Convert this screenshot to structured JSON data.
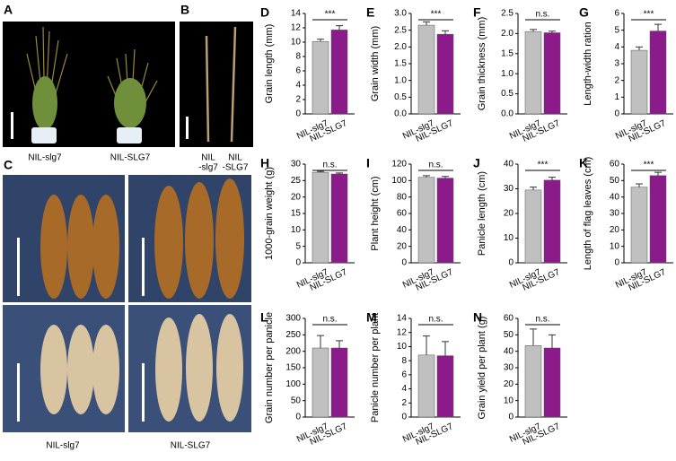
{
  "photo_panels": [
    {
      "panel": "A",
      "labels": [
        "NIL-slg7",
        "NIL-SLG7"
      ]
    },
    {
      "panel": "B",
      "labels": [
        [
          "NIL",
          "-slg7"
        ],
        [
          "NIL",
          "-SLG7"
        ]
      ]
    },
    {
      "panel": "C",
      "labels": [
        "NIL-slg7",
        "NIL-SLG7"
      ]
    }
  ],
  "chart_data": [
    {
      "type": "bar",
      "panel": "D",
      "y_label": "Grain length (mm)",
      "categories": [
        "NIL-slg7",
        "NIL-SLG7"
      ],
      "values": [
        10.1,
        11.7
      ],
      "errors": [
        0.3,
        0.6
      ],
      "colors": [
        "#c0c0c0",
        "#8b1a8b"
      ],
      "ylim": [
        0,
        14
      ],
      "yticks": [
        0,
        2,
        4,
        6,
        8,
        10,
        12,
        14
      ],
      "significance": "***"
    },
    {
      "type": "bar",
      "panel": "E",
      "y_label": "Grain width (mm)",
      "categories": [
        "NIL-slg7",
        "NIL-SLG7"
      ],
      "values": [
        2.65,
        2.38
      ],
      "errors": [
        0.1,
        0.1
      ],
      "colors": [
        "#c0c0c0",
        "#8b1a8b"
      ],
      "ylim": [
        0,
        3
      ],
      "yticks": [
        {
          "value": 0,
          "label": "0.0"
        },
        0.5,
        {
          "value": 1,
          "label": "1.0"
        },
        1.5,
        {
          "value": 2,
          "label": "2.0"
        },
        2.5,
        {
          "value": 3,
          "label": "3.0"
        }
      ],
      "significance": "***"
    },
    {
      "type": "bar",
      "panel": "F",
      "y_label": "Grain thickness (mm)",
      "categories": [
        "NIL-slg7",
        "NIL-SLG7"
      ],
      "values": [
        2.05,
        2.02
      ],
      "errors": [
        0.05,
        0.04
      ],
      "colors": [
        "#c0c0c0",
        "#8b1a8b"
      ],
      "ylim": [
        0,
        2.5
      ],
      "yticks": [
        {
          "value": 0,
          "label": "0.0"
        },
        0.5,
        {
          "value": 1,
          "label": "1.0"
        },
        1.5,
        {
          "value": 2,
          "label": "2.0"
        },
        2.5
      ],
      "significance": "n.s."
    },
    {
      "type": "bar",
      "panel": "G",
      "y_label": "Length-width ration",
      "categories": [
        "NIL-slg7",
        "NIL-SLG7"
      ],
      "values": [
        3.8,
        4.95
      ],
      "errors": [
        0.2,
        0.4
      ],
      "colors": [
        "#c0c0c0",
        "#8b1a8b"
      ],
      "ylim": [
        0,
        6
      ],
      "yticks": [
        0,
        1,
        2,
        3,
        4,
        5,
        6
      ],
      "significance": "***"
    },
    {
      "type": "bar",
      "panel": "H",
      "y_label": "1000-grain weight (g)",
      "categories": [
        "NIL-slg7",
        "NIL-SLG7"
      ],
      "values": [
        27.5,
        27.0
      ],
      "errors": [
        0.3,
        0.3
      ],
      "colors": [
        "#c0c0c0",
        "#8b1a8b"
      ],
      "ylim": [
        0,
        30
      ],
      "yticks": [
        0,
        5,
        10,
        15,
        20,
        25,
        30
      ],
      "significance": "n.s."
    },
    {
      "type": "bar",
      "panel": "I",
      "y_label": "Plant height (cm)",
      "categories": [
        "NIL-slg7",
        "NIL-SLG7"
      ],
      "values": [
        104,
        103
      ],
      "errors": [
        2,
        2
      ],
      "colors": [
        "#c0c0c0",
        "#8b1a8b"
      ],
      "ylim": [
        0,
        120
      ],
      "yticks": [
        0,
        20,
        40,
        60,
        80,
        100,
        120
      ],
      "significance": "n.s."
    },
    {
      "type": "bar",
      "panel": "J",
      "y_label": "Panicle length (cm)",
      "categories": [
        "NIL-slg7",
        "NIL-SLG7"
      ],
      "values": [
        29.5,
        33.5
      ],
      "errors": [
        1.2,
        1.2
      ],
      "colors": [
        "#c0c0c0",
        "#8b1a8b"
      ],
      "ylim": [
        0,
        40
      ],
      "yticks": [
        0,
        10,
        20,
        30,
        40
      ],
      "significance": "***"
    },
    {
      "type": "bar",
      "panel": "K",
      "y_label": "Length of flag leaves (cm)",
      "categories": [
        "NIL-slg7",
        "NIL-SLG7"
      ],
      "values": [
        46,
        53
      ],
      "errors": [
        2,
        2
      ],
      "colors": [
        "#c0c0c0",
        "#8b1a8b"
      ],
      "ylim": [
        0,
        60
      ],
      "yticks": [
        0,
        10,
        20,
        30,
        40,
        50,
        60
      ],
      "significance": "***"
    },
    {
      "type": "bar",
      "panel": "L",
      "y_label": "Grain number per panicle",
      "categories": [
        "NIL-slg7",
        "NIL-SLG7"
      ],
      "values": [
        210,
        210
      ],
      "errors": [
        38,
        22
      ],
      "colors": [
        "#c0c0c0",
        "#8b1a8b"
      ],
      "ylim": [
        0,
        300
      ],
      "yticks": [
        0,
        50,
        100,
        150,
        200,
        250,
        300
      ],
      "significance": "n.s."
    },
    {
      "type": "bar",
      "panel": "M",
      "y_label": "Panicle number per plant",
      "categories": [
        "NIL-slg7",
        "NIL-SLG7"
      ],
      "values": [
        8.8,
        8.7
      ],
      "errors": [
        2.7,
        2.0
      ],
      "colors": [
        "#c0c0c0",
        "#8b1a8b"
      ],
      "ylim": [
        0,
        14
      ],
      "yticks": [
        0,
        2,
        4,
        6,
        8,
        10,
        12,
        14
      ],
      "significance": "n.s."
    },
    {
      "type": "bar",
      "panel": "N",
      "y_label": "Grain yield per plant (g)",
      "categories": [
        "NIL-slg7",
        "NIL-SLG7"
      ],
      "values": [
        43.5,
        42
      ],
      "errors": [
        10,
        8
      ],
      "colors": [
        "#c0c0c0",
        "#8b1a8b"
      ],
      "ylim": [
        0,
        60
      ],
      "yticks": [
        0,
        10,
        20,
        30,
        40,
        50,
        60
      ],
      "significance": "n.s."
    }
  ]
}
